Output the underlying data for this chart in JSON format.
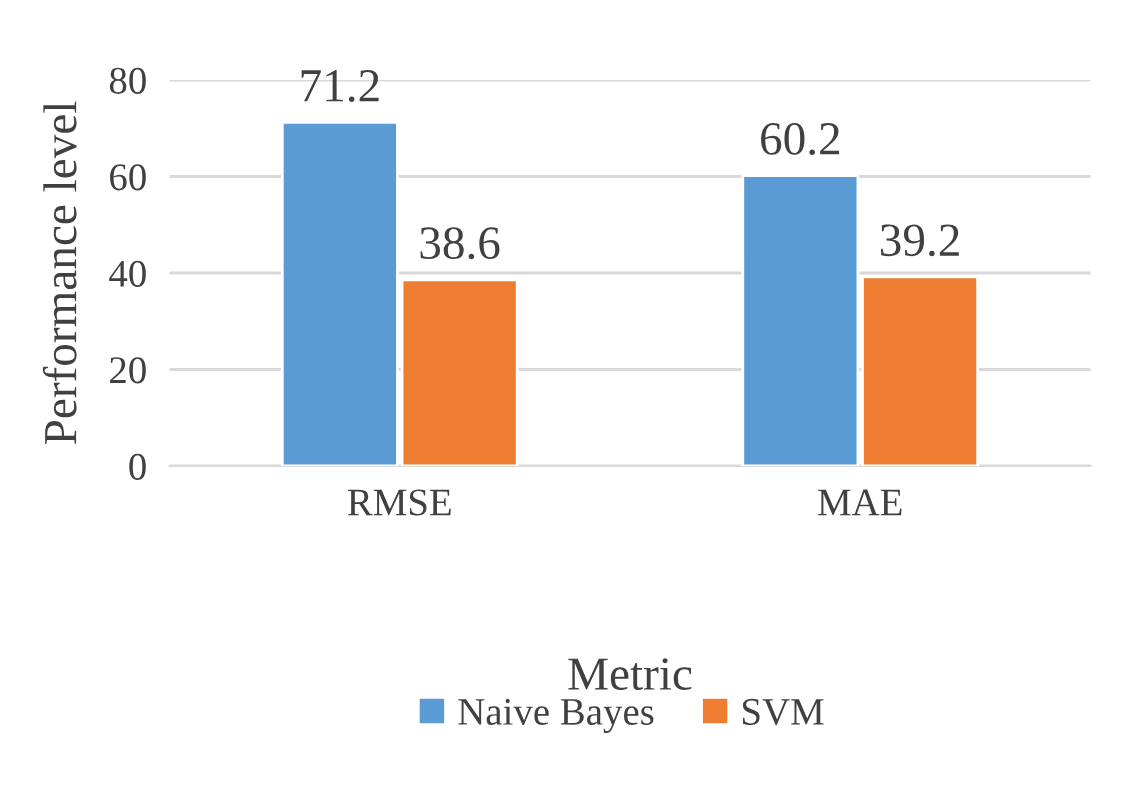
{
  "chart_data": {
    "type": "bar",
    "categories": [
      "RMSE",
      "MAE"
    ],
    "series": [
      {
        "name": "Naive Bayes",
        "color": "#5b9bd5",
        "values": [
          71.2,
          60.2
        ]
      },
      {
        "name": "SVM",
        "color": "#ed7d31",
        "values": [
          38.6,
          39.2
        ]
      }
    ],
    "xlabel": "Metric",
    "ylabel": "Performance level",
    "ylim": [
      0,
      80
    ],
    "yticks": [
      0,
      20,
      40,
      60,
      80
    ],
    "grid": "y",
    "legend": "bottom",
    "data_labels": true
  }
}
